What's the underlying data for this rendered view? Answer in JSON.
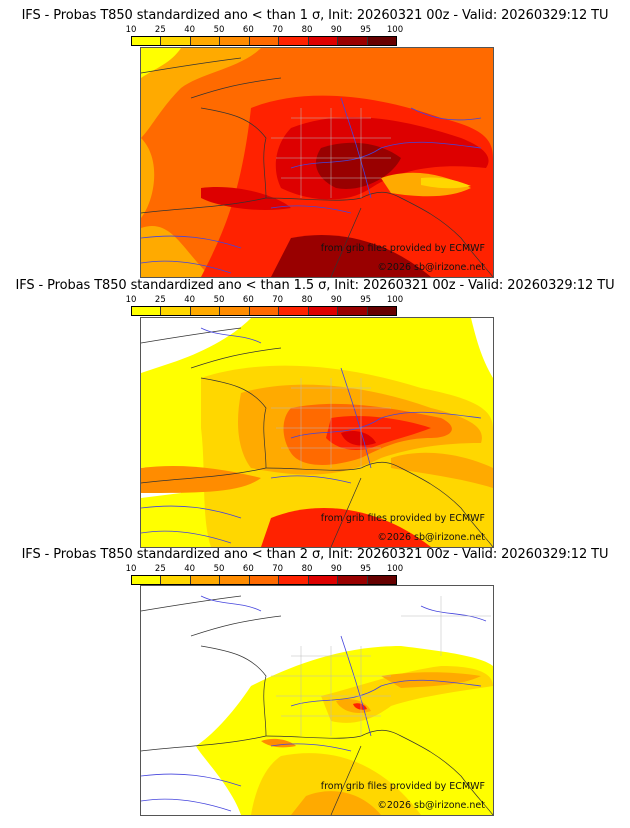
{
  "colorbar": {
    "ticks": [
      "10",
      "25",
      "40",
      "50",
      "60",
      "70",
      "80",
      "90",
      "95",
      "100"
    ],
    "colors": [
      "#ffff00",
      "#ffd700",
      "#ffaa00",
      "#ff8c00",
      "#ff6a00",
      "#ff2200",
      "#dd0000",
      "#990000",
      "#660000"
    ]
  },
  "panels": [
    {
      "title": "IFS - Probas T850  standardized ano < than 1 σ, Init: 20260321 00z - Valid: 20260329:12 TU",
      "background_color": "#ff4400",
      "credit_source": "from grib files provided by ECMWF",
      "credit_copyright": "©2026 sb@irizone.net"
    },
    {
      "title": "IFS - Probas T850  standardized ano < than 1.5 σ, Init: 20260321 00z - Valid: 20260329:12 TU",
      "background_color": "#ffff00",
      "credit_source": "from grib files provided by ECMWF",
      "credit_copyright": "©2026 sb@irizone.net"
    },
    {
      "title": "IFS - Probas T850  standardized ano < than 2 σ, Init: 20260321 00z - Valid: 20260329:12 TU",
      "background_color": "#ffffff",
      "credit_source": "from grib files provided by ECMWF",
      "credit_copyright": "©2026 sb@irizone.net"
    }
  ]
}
